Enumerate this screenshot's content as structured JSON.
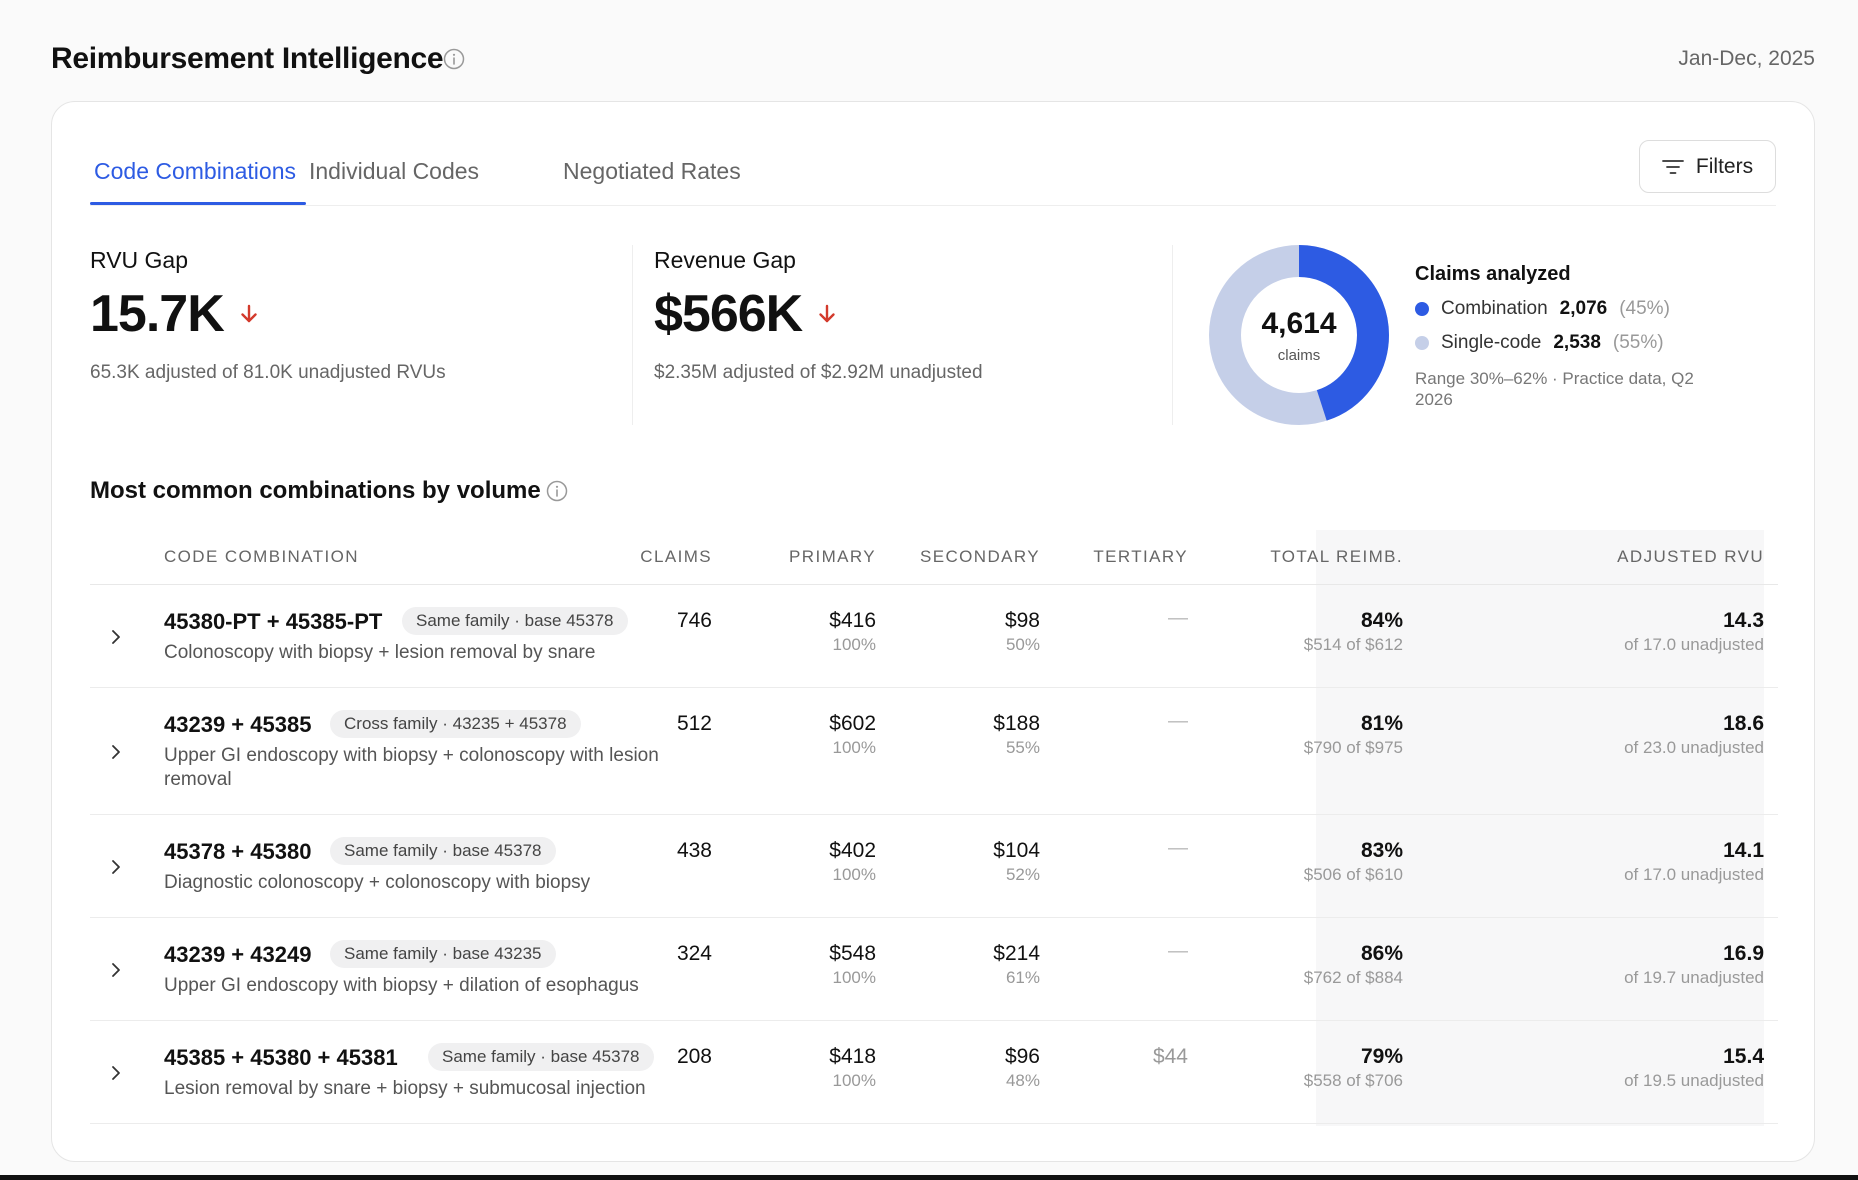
{
  "header": {
    "title": "Reimbursement Intelligence",
    "date_range": "Jan-Dec, 2025"
  },
  "tabs": [
    {
      "label": "Code Combinations",
      "active": true
    },
    {
      "label": "Individual Codes",
      "active": false
    },
    {
      "label": "Negotiated Rates",
      "active": false
    }
  ],
  "filters_label": "Filters",
  "kpis": {
    "rvu": {
      "label": "RVU Gap",
      "value": "15.7K",
      "sub": "65.3K adjusted of 81.0K unadjusted RVUs"
    },
    "revenue": {
      "label": "Revenue Gap",
      "value": "$566K",
      "sub": "$2.35M adjusted of $2.92M unadjusted"
    }
  },
  "claims": {
    "total": "4,614",
    "total_label": "claims",
    "title": "Claims analyzed",
    "combination": {
      "label": "Combination",
      "count": "2,076",
      "pct": "(45%)",
      "fraction": 0.45
    },
    "single": {
      "label": "Single-code",
      "count": "2,538",
      "pct": "(55%)",
      "fraction": 0.55
    },
    "note": "Range 30%–62% · Practice data, Q2 2026"
  },
  "colors": {
    "accent": "#2d5be3",
    "donut_light": "#c5cfe8",
    "down_arrow": "#d33a2c"
  },
  "section_title": "Most common combinations by volume",
  "columns": {
    "combination": "CODE COMBINATION",
    "claims": "CLAIMS",
    "primary": "PRIMARY",
    "secondary": "SECONDARY",
    "tertiary": "TERTIARY",
    "total_reimb": "TOTAL REIMB.",
    "adjusted_rvu": "ADJUSTED RVU"
  },
  "rows": [
    {
      "codes": "45380-PT + 45385-PT",
      "pill": "Same family · base 45378",
      "desc": "Colonoscopy with biopsy + lesion removal by snare",
      "claims": "746",
      "primary": "$416",
      "primary_pct": "100%",
      "secondary": "$98",
      "secondary_pct": "50%",
      "tertiary": "—",
      "total_pct": "84%",
      "total_sub": "$514 of $612",
      "rvu": "14.3",
      "rvu_sub": "of 17.0 unadjusted"
    },
    {
      "codes": "43239 + 45385",
      "pill": "Cross family · 43235 + 45378",
      "desc": "Upper GI endoscopy with biopsy + colonoscopy with lesion removal",
      "claims": "512",
      "primary": "$602",
      "primary_pct": "100%",
      "secondary": "$188",
      "secondary_pct": "55%",
      "tertiary": "—",
      "total_pct": "81%",
      "total_sub": "$790 of $975",
      "rvu": "18.6",
      "rvu_sub": "of 23.0 unadjusted"
    },
    {
      "codes": "45378 + 45380",
      "pill": "Same family · base 45378",
      "desc": "Diagnostic colonoscopy + colonoscopy with biopsy",
      "claims": "438",
      "primary": "$402",
      "primary_pct": "100%",
      "secondary": "$104",
      "secondary_pct": "52%",
      "tertiary": "—",
      "total_pct": "83%",
      "total_sub": "$506 of $610",
      "rvu": "14.1",
      "rvu_sub": "of 17.0 unadjusted"
    },
    {
      "codes": "43239 + 43249",
      "pill": "Same family · base 43235",
      "desc": "Upper GI endoscopy with biopsy + dilation of esophagus",
      "claims": "324",
      "primary": "$548",
      "primary_pct": "100%",
      "secondary": "$214",
      "secondary_pct": "61%",
      "tertiary": "—",
      "total_pct": "86%",
      "total_sub": "$762 of $884",
      "rvu": "16.9",
      "rvu_sub": "of 19.7 unadjusted"
    },
    {
      "codes": "45385 + 45380 + 45381",
      "pill": "Same family · base 45378",
      "desc": "Lesion removal by snare + biopsy + submucosal injection",
      "claims": "208",
      "primary": "$418",
      "primary_pct": "100%",
      "secondary": "$96",
      "secondary_pct": "48%",
      "tertiary": "$44",
      "total_pct": "79%",
      "total_sub": "$558 of $706",
      "rvu": "15.4",
      "rvu_sub": "of 19.5 unadjusted"
    }
  ]
}
